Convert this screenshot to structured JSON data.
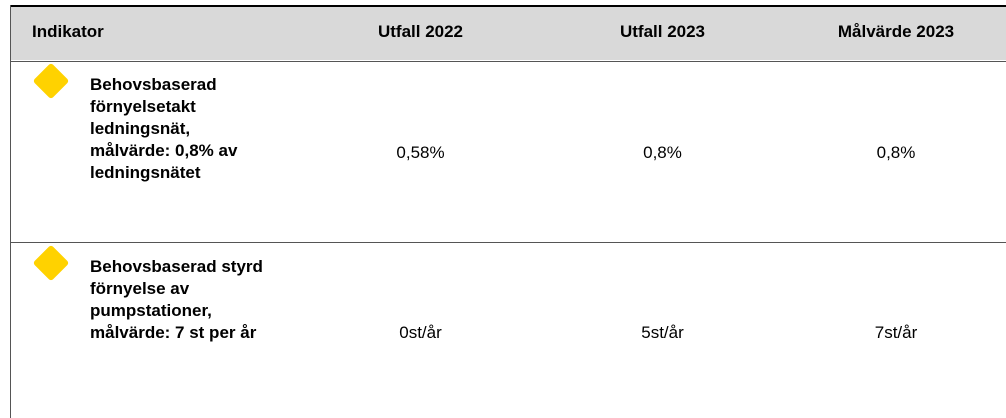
{
  "table": {
    "header": [
      "Indikator",
      "Utfall 2022",
      "Utfall 2023",
      "Målvärde 2023"
    ],
    "rows": [
      [
        "Behovsbaserad förnyelsetakt ledningsnät, målvärde: 0,8% av ledningsnätet",
        "0,58%",
        "0,8%",
        "0,8%"
      ],
      [
        "Behovsbaserad styrd förnyelse av pumpstationer, målvärde: 7 st per år",
        "0st/år",
        "5st/år",
        "7st/år"
      ]
    ]
  }
}
